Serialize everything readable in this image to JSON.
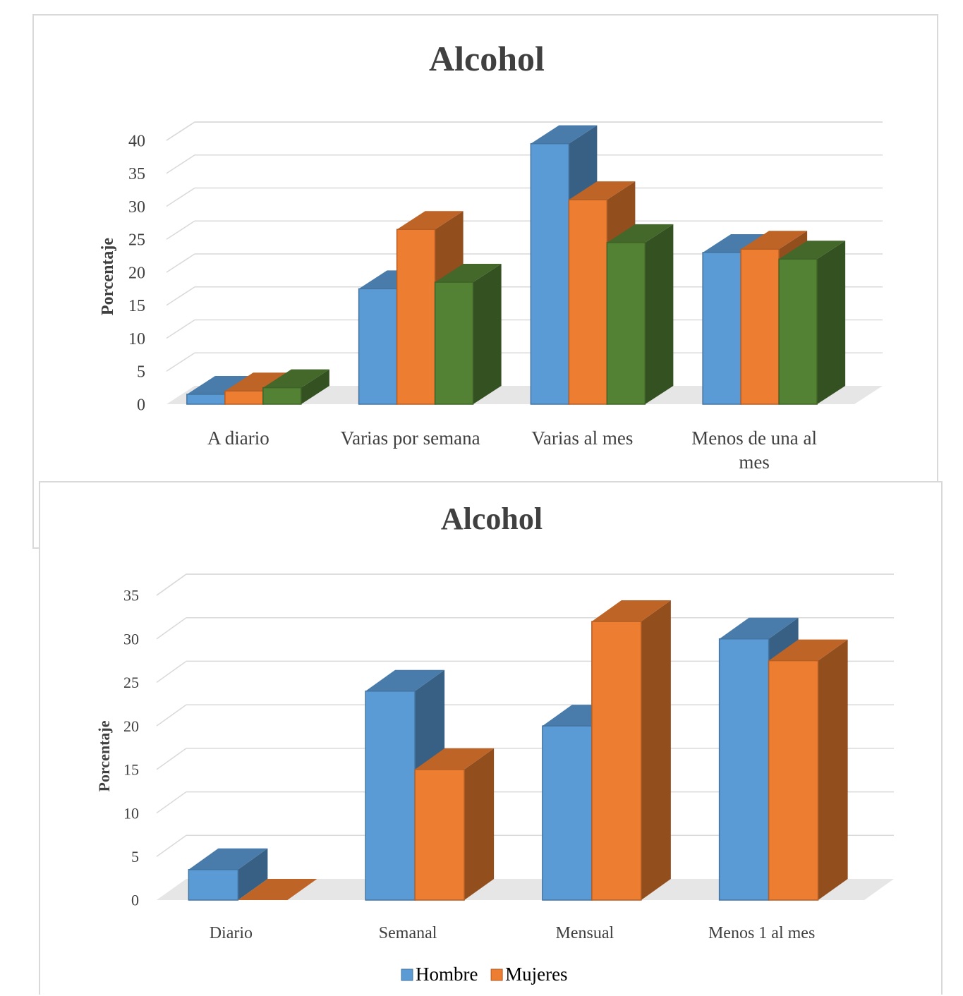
{
  "chart_data": [
    {
      "type": "bar",
      "title": "Alcohol",
      "ylabel": "Porcentaje",
      "xlabel": "",
      "ylim": [
        0,
        40
      ],
      "yticks": [
        0,
        5,
        10,
        15,
        20,
        25,
        30,
        35,
        40
      ],
      "categories": [
        "A diario",
        "Varias por semana",
        "Varias al mes",
        "Menos de una al mes"
      ],
      "series": [
        {
          "values": [
            1.5,
            17.5,
            39.5,
            23
          ],
          "color": "#5b9bd5"
        },
        {
          "values": [
            2,
            26.5,
            31,
            23.5
          ],
          "color": "#ed7d31"
        },
        {
          "values": [
            2.5,
            18.5,
            24.5,
            22
          ],
          "color": "#548235"
        }
      ],
      "grid": true
    },
    {
      "type": "bar",
      "title": "Alcohol",
      "ylabel": "Porcentaje",
      "xlabel": "",
      "ylim": [
        0,
        35
      ],
      "yticks": [
        0,
        5,
        10,
        15,
        20,
        25,
        30,
        35
      ],
      "categories": [
        "Diario",
        "Semanal",
        "Mensual",
        "Menos 1 al mes"
      ],
      "series": [
        {
          "name": "Hombre",
          "values": [
            3.5,
            24,
            20,
            30
          ],
          "color": "#5b9bd5"
        },
        {
          "name": "Mujeres",
          "values": [
            0,
            15,
            32,
            27.5
          ],
          "color": "#ed7d31"
        }
      ],
      "legend": "bottom",
      "grid": true
    }
  ]
}
